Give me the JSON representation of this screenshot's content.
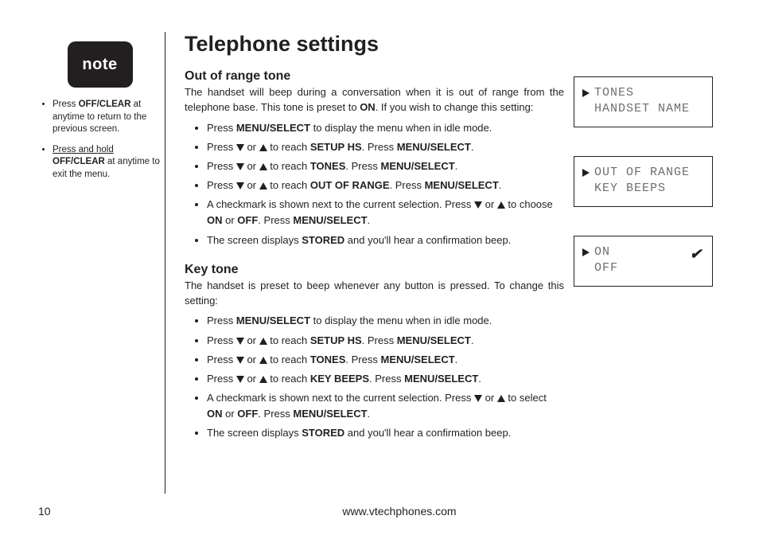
{
  "colors": {
    "text": "#231f20",
    "lcd_text": "#6d6e71",
    "background": "#ffffff",
    "note_badge_bg": "#231f20",
    "note_badge_fg": "#ffffff"
  },
  "note_badge": {
    "label": "note"
  },
  "sidebar_tips": [
    {
      "pre": "Press ",
      "bold": "OFF/CLEAR",
      "post": " at anytime to return to the previous screen.",
      "underline_pre": false
    },
    {
      "pre": "Press and hold",
      "bold": "OFF/CLEAR",
      "post": " at anytime to exit the menu.",
      "underline_pre": true
    }
  ],
  "title": "Telephone settings",
  "section1": {
    "heading": "Out of range tone",
    "intro_parts": [
      "The handset will beep during a conversation when it is out of range from the telephone base. This tone is preset to ",
      "ON",
      ". If you wish to change this setting:"
    ],
    "steps": [
      {
        "t": [
          "Press ",
          {
            "b": "MENU/SELECT"
          },
          " to display the menu when in idle mode."
        ]
      },
      {
        "t": [
          "Press ",
          {
            "down": true
          },
          " or ",
          {
            "up": true
          },
          " to reach ",
          {
            "b": "SETUP HS"
          },
          ". Press ",
          {
            "b": "MENU/SELECT"
          },
          "."
        ]
      },
      {
        "t": [
          "Press ",
          {
            "down": true
          },
          " or ",
          {
            "up": true
          },
          " to reach ",
          {
            "b": "TONES"
          },
          ". Press ",
          {
            "b": "MENU/SELECT"
          },
          "."
        ]
      },
      {
        "t": [
          "Press ",
          {
            "down": true
          },
          " or ",
          {
            "up": true
          },
          " to reach ",
          {
            "b": "OUT OF RANGE"
          },
          ". Press ",
          {
            "b": "MENU/SELECT"
          },
          "."
        ]
      },
      {
        "t": [
          "A checkmark is shown next to the current selection. Press ",
          {
            "down": true
          },
          " or ",
          {
            "up": true
          },
          " to choose ",
          {
            "b": "ON"
          },
          " or ",
          {
            "b": "OFF"
          },
          ". Press ",
          {
            "b": "MENU/SELECT"
          },
          "."
        ]
      },
      {
        "t": [
          "The screen displays ",
          {
            "b": "STORED"
          },
          " and you'll hear a confirmation beep."
        ]
      }
    ]
  },
  "section2": {
    "heading": "Key tone",
    "intro": "The handset is preset to beep whenever any button is pressed. To change this setting:",
    "steps": [
      {
        "t": [
          "Press ",
          {
            "b": "MENU/SELECT"
          },
          " to display the menu when in idle mode."
        ]
      },
      {
        "t": [
          "Press ",
          {
            "down": true
          },
          " or ",
          {
            "up": true
          },
          " to reach ",
          {
            "b": "SETUP HS"
          },
          ". Press ",
          {
            "b": "MENU/SELECT"
          },
          "."
        ]
      },
      {
        "t": [
          "Press ",
          {
            "down": true
          },
          " or ",
          {
            "up": true
          },
          " to reach ",
          {
            "b": "TONES"
          },
          ". Press ",
          {
            "b": "MENU/SELECT"
          },
          "."
        ]
      },
      {
        "t": [
          "Press ",
          {
            "down": true
          },
          " or ",
          {
            "up": true
          },
          " to reach ",
          {
            "b": "KEY BEEPS"
          },
          ". Press ",
          {
            "b": "MENU/SELECT"
          },
          "."
        ]
      },
      {
        "t": [
          "A checkmark is shown next to the current selection. Press ",
          {
            "down": true
          },
          " or ",
          {
            "up": true
          },
          " to select ",
          {
            "b": "ON"
          },
          " or ",
          {
            "b": "OFF"
          },
          ". Press ",
          {
            "b": "MENU/SELECT"
          },
          "."
        ]
      },
      {
        "t": [
          "The screen displays ",
          {
            "b": "STORED"
          },
          " and you'll hear a confirmation beep."
        ]
      }
    ]
  },
  "lcd_screens": [
    {
      "rows": [
        {
          "ptr": true,
          "text": "TONES"
        },
        {
          "ptr": false,
          "text": "HANDSET NAME"
        }
      ]
    },
    {
      "rows": [
        {
          "ptr": true,
          "text": "OUT OF RANGE"
        },
        {
          "ptr": false,
          "text": "KEY BEEPS"
        }
      ]
    },
    {
      "rows": [
        {
          "ptr": true,
          "text": "ON",
          "check": true
        },
        {
          "ptr": false,
          "text": "OFF"
        }
      ]
    }
  ],
  "footer": {
    "page": "10",
    "url": "www.vtechphones.com"
  }
}
